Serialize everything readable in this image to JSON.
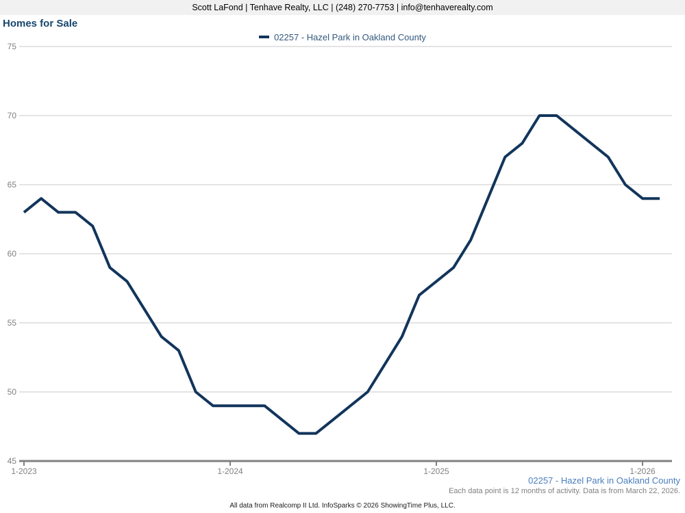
{
  "header": {
    "contact": "Scott LaFond | Tenhave Realty, LLC | (248) 270-7753 | info@tenhaverealty.com"
  },
  "title": "Homes for Sale",
  "legend": {
    "label": "02257 - Hazel Park in Oakland County"
  },
  "footer": {
    "series_label": "02257 - Hazel Park in Oakland County",
    "data_note": "Each data point is 12 months of activity. Data is from March 22, 2026.",
    "attribution": "All data from Realcomp II Ltd. InfoSparks © 2026 ShowingTime Plus, LLC."
  },
  "colors": {
    "line": "#12355B",
    "grid": "#C9C9C9",
    "axis": "#808080",
    "axis_label": "#808080",
    "title_text": "#17466B",
    "legend_text": "#33587E",
    "footer_series_text": "#4A7EBB",
    "note_text": "#7F7F7F",
    "header_bg": "#F1F1F1"
  },
  "chart_data": {
    "type": "line",
    "title": "Homes for Sale",
    "x_start": "1-2023",
    "x_interval": "month",
    "x_tick_labels": [
      "1-2023",
      "1-2024",
      "1-2025",
      "1-2026"
    ],
    "x_tick_point_indices": [
      0,
      12,
      24,
      36
    ],
    "y_ticks": [
      75,
      70,
      65,
      60,
      55,
      50,
      45
    ],
    "ylim": [
      45,
      75
    ],
    "grid": true,
    "legend_position": "top-center",
    "series": [
      {
        "name": "02257 - Hazel Park in Oakland County",
        "color": "#12355B",
        "values": [
          63,
          64,
          63,
          63,
          62,
          59,
          58,
          56,
          54,
          53,
          50,
          49,
          49,
          49,
          49,
          48,
          47,
          47,
          48,
          49,
          50,
          52,
          54,
          57,
          58,
          59,
          61,
          64,
          67,
          68,
          70,
          70,
          69,
          68,
          67,
          65,
          64,
          64
        ]
      }
    ]
  }
}
